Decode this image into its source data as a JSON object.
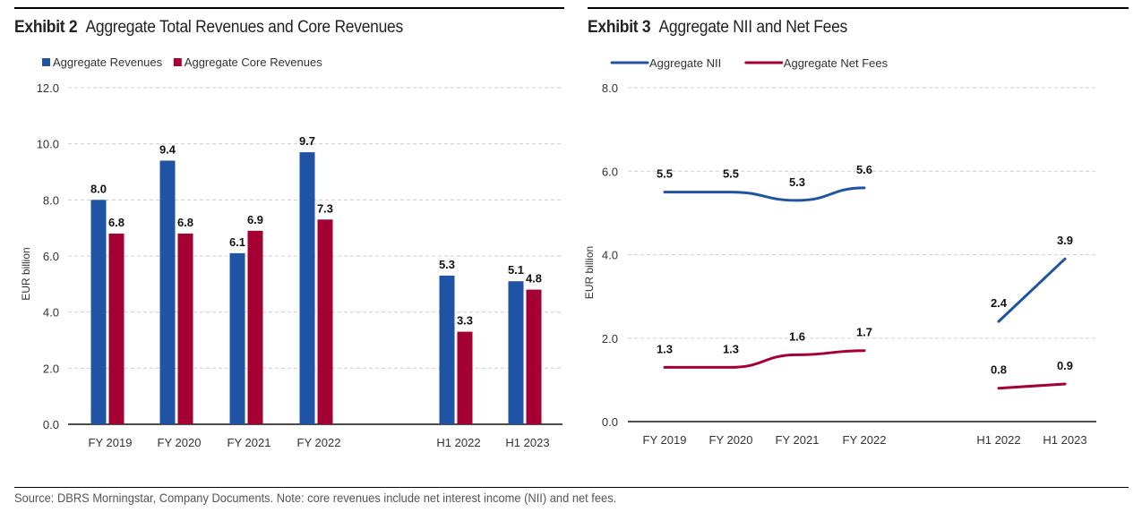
{
  "footer": "Source: DBRS Morningstar, Company Documents. Note: core revenues include net interest income (NII) and net fees.",
  "chart_data": [
    {
      "type": "bar",
      "exhibit": "Exhibit 2",
      "title": "Aggregate Total Revenues and Core Revenues",
      "xlabel": "",
      "ylabel": "EUR billion",
      "ylim": [
        0,
        12
      ],
      "yticks": [
        "0.0",
        "2.0",
        "4.0",
        "6.0",
        "8.0",
        "10.0",
        "12.0"
      ],
      "grid": true,
      "legend": "top-left",
      "categories": [
        "FY 2019",
        "FY 2020",
        "FY 2021",
        "FY 2022",
        "",
        "H1 2022",
        "H1 2023"
      ],
      "series": [
        {
          "name": "Aggregate Revenues",
          "color": "#1f53a3",
          "values": [
            8.0,
            9.4,
            6.1,
            9.7,
            null,
            5.3,
            5.1
          ],
          "labels": [
            "8.0",
            "9.4",
            "6.1",
            "9.7",
            "",
            "5.3",
            "5.1"
          ]
        },
        {
          "name": "Aggregate Core Revenues",
          "color": "#a50034",
          "values": [
            6.8,
            6.8,
            6.9,
            7.3,
            null,
            3.3,
            4.8
          ],
          "labels": [
            "6.8",
            "6.8",
            "6.9",
            "7.3",
            "",
            "3.3",
            "4.8"
          ]
        }
      ]
    },
    {
      "type": "line",
      "exhibit": "Exhibit 3",
      "title": "Aggregate NII and Net Fees",
      "xlabel": "",
      "ylabel": "EUR billion",
      "ylim": [
        0,
        8
      ],
      "yticks": [
        "0.0",
        "2.0",
        "4.0",
        "6.0",
        "8.0"
      ],
      "grid": true,
      "legend": "top-left",
      "categories": [
        "FY 2019",
        "FY 2020",
        "FY 2021",
        "FY 2022",
        "",
        "H1 2022",
        "H1 2023"
      ],
      "series": [
        {
          "name": "Aggregate NII",
          "color": "#1f53a3",
          "values": [
            5.5,
            5.5,
            5.3,
            5.6,
            null,
            2.4,
            3.9
          ],
          "labels": [
            "5.5",
            "5.5",
            "5.3",
            "5.6",
            "",
            "2.4",
            "3.9"
          ]
        },
        {
          "name": "Aggregate Net Fees",
          "color": "#a50034",
          "values": [
            1.3,
            1.3,
            1.6,
            1.7,
            null,
            0.8,
            0.9
          ],
          "labels": [
            "1.3",
            "1.3",
            "1.6",
            "1.7",
            "",
            "0.8",
            "0.9"
          ]
        }
      ]
    }
  ]
}
